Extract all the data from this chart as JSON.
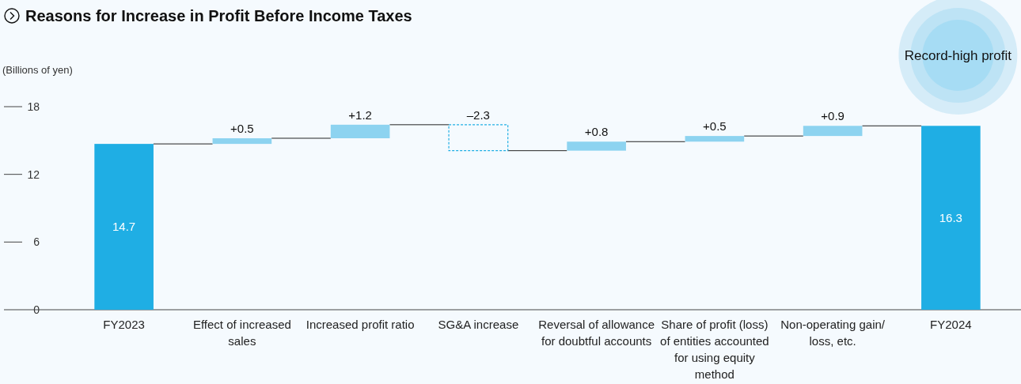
{
  "chart_data": {
    "type": "bar",
    "title": "Reasons for Increase in Profit Before Income Taxes",
    "ylabel": "(Billions of yen)",
    "categories": [
      "FY2023",
      "Effect of increased sales",
      "Increased profit ratio",
      "SG&A increase",
      "Reversal of allowance for doubtful accounts",
      "Share of profit (loss) of entities accounted for using equity method",
      "Non-operating gain/ loss, etc.",
      "FY2024"
    ],
    "values": [
      14.7,
      0.5,
      1.2,
      -2.3,
      0.8,
      0.5,
      0.9,
      16.3
    ],
    "base": [
      0,
      14.7,
      15.2,
      16.4,
      14.1,
      14.9,
      15.4,
      0
    ],
    "colors": [
      "#1faee4",
      "#8dd3f0",
      "#8dd3f0",
      "#1faee4",
      "#8dd3f0",
      "#8dd3f0",
      "#8dd3f0",
      "#1faee4"
    ],
    "value_labels": [
      "14.7",
      "+0.5",
      "+1.2",
      "–2.3",
      "+0.8",
      "+0.5",
      "+0.9",
      "16.3"
    ],
    "ylim": [
      0,
      18
    ],
    "yticks": [
      0,
      6,
      12,
      18
    ],
    "grid": false,
    "annotations": [
      "Record-high profit"
    ]
  }
}
